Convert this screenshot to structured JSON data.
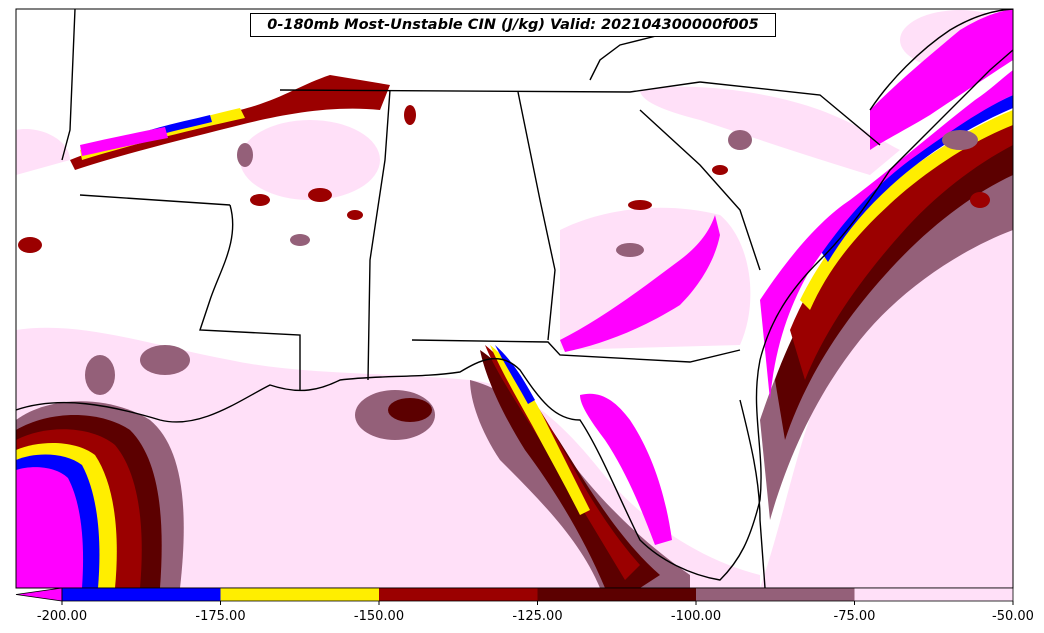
{
  "title": "0-180mb Most-Unstable CIN (J/kg) Valid: 202104300000f005",
  "colorbar": {
    "tick_labels": [
      "-200.00",
      "-175.00",
      "-150.00",
      "-125.00",
      "-100.00",
      "-75.00",
      "-50.00"
    ],
    "colors": [
      "#ff00ff",
      "#0000ff",
      "#ffee00",
      "#9b0000",
      "#5c0000",
      "#946079",
      "#ffe0f8"
    ]
  },
  "chart_data": {
    "type": "heatmap",
    "title": "0-180mb Most-Unstable CIN (J/kg) Valid: 202104300000f005",
    "field": "0-180mb Most-Unstable CIN",
    "units": "J/kg",
    "valid": "202104300000f005",
    "levels": [
      -200,
      -175,
      -150,
      -125,
      -100,
      -75,
      -50
    ],
    "colorbar": "horizontal-bottom",
    "extend": "min"
  }
}
